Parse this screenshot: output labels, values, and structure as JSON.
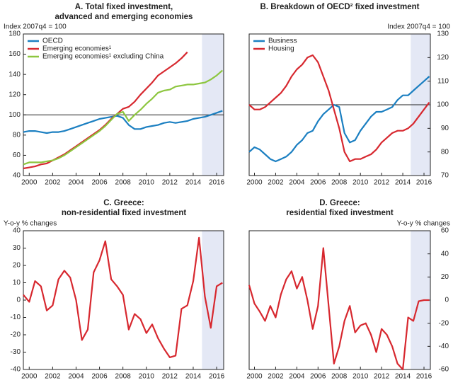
{
  "chart_data": [
    {
      "type": "line",
      "title": [
        "A. Total fixed investment,",
        "advanced and emerging economies"
      ],
      "y_label": "Index 2007q4 = 100",
      "y_axis_side": "left",
      "legend": "upper left",
      "x": [
        1999.5,
        2000,
        2000.5,
        2001,
        2001.5,
        2002,
        2002.5,
        2003,
        2003.5,
        2004,
        2004.5,
        2005,
        2005.5,
        2006,
        2006.5,
        2007,
        2007.5,
        2008,
        2008.5,
        2009,
        2009.5,
        2010,
        2010.5,
        2011,
        2011.5,
        2012,
        2012.5,
        2013,
        2013.5,
        2014,
        2014.5,
        2015,
        2015.5,
        2016,
        2016.5
      ],
      "xlim": [
        1999.5,
        2016.6
      ],
      "xticks": [
        2000,
        2002,
        2004,
        2006,
        2008,
        2010,
        2012,
        2014,
        2016
      ],
      "ylim": [
        40,
        180
      ],
      "yticks": [
        40,
        60,
        80,
        100,
        120,
        140,
        160,
        180
      ],
      "ref_line": 100,
      "shaded_x": [
        2014.75,
        2016.6
      ],
      "series": [
        {
          "name": "OECD",
          "color": "#1b7fc1",
          "values": [
            83,
            84,
            84,
            83,
            82,
            83,
            83,
            84,
            86,
            88,
            90,
            92,
            94,
            96,
            97,
            98,
            99,
            97,
            90,
            86,
            86,
            88,
            89,
            90,
            92,
            93,
            92,
            93,
            94,
            96,
            97,
            98,
            100,
            102,
            104
          ]
        },
        {
          "name": "Emerging economies¹",
          "color": "#d7282f",
          "values": [
            47,
            48,
            49,
            51,
            52,
            55,
            58,
            61,
            65,
            69,
            73,
            77,
            81,
            85,
            90,
            96,
            101,
            106,
            108,
            113,
            120,
            126,
            132,
            139,
            143,
            147,
            151,
            156,
            162,
            null,
            null,
            null,
            null,
            null,
            null
          ]
        },
        {
          "name": "Emerging economies¹ excluding China",
          "color": "#8dc63f",
          "values": [
            51,
            53,
            53,
            53,
            54,
            55,
            57,
            60,
            64,
            68,
            72,
            76,
            80,
            84,
            89,
            95,
            101,
            103,
            94,
            100,
            105,
            111,
            116,
            122,
            124,
            125,
            128,
            129,
            130,
            130,
            131,
            132,
            135,
            139,
            144
          ]
        }
      ]
    },
    {
      "type": "line",
      "title": [
        "B. Breakdown of OECD² fixed investment"
      ],
      "y_label": "Index 2007q4 = 100",
      "y_axis_side": "right",
      "legend": "upper left",
      "x": [
        1999.5,
        2000,
        2000.5,
        2001,
        2001.5,
        2002,
        2002.5,
        2003,
        2003.5,
        2004,
        2004.5,
        2005,
        2005.5,
        2006,
        2006.5,
        2007,
        2007.5,
        2008,
        2008.5,
        2009,
        2009.5,
        2010,
        2010.5,
        2011,
        2011.5,
        2012,
        2012.5,
        2013,
        2013.5,
        2014,
        2014.5,
        2015,
        2015.5,
        2016,
        2016.5
      ],
      "xlim": [
        1999.5,
        2016.6
      ],
      "xticks": [
        2000,
        2002,
        2004,
        2006,
        2008,
        2010,
        2012,
        2014,
        2016
      ],
      "ylim": [
        70,
        130
      ],
      "yticks": [
        70,
        80,
        90,
        100,
        110,
        120,
        130
      ],
      "ref_line": 100,
      "shaded_x": [
        2014.75,
        2016.6
      ],
      "series": [
        {
          "name": "Business",
          "color": "#1b7fc1",
          "values": [
            80,
            82,
            81,
            79,
            77,
            76,
            77,
            78,
            80,
            83,
            85,
            88,
            89,
            93,
            96,
            98,
            100,
            99,
            88,
            84,
            85,
            89,
            92,
            95,
            97,
            97,
            98,
            99,
            102,
            104,
            104,
            106,
            108,
            110,
            112
          ]
        },
        {
          "name": "Housing",
          "color": "#d7282f",
          "values": [
            100,
            98,
            98,
            99,
            101,
            103,
            105,
            108,
            112,
            115,
            117,
            120,
            121,
            118,
            112,
            106,
            98,
            90,
            80,
            76,
            77,
            77,
            78,
            79,
            81,
            84,
            86,
            88,
            89,
            89,
            90,
            92,
            95,
            98,
            101
          ]
        }
      ]
    },
    {
      "type": "line",
      "title": [
        "C. Greece:",
        "non-residential fixed investment"
      ],
      "y_label": "Y-o-y % changes",
      "y_axis_side": "left",
      "x": [
        1999.5,
        2000,
        2000.5,
        2001,
        2001.5,
        2002,
        2002.5,
        2003,
        2003.5,
        2004,
        2004.5,
        2005,
        2005.5,
        2006,
        2006.5,
        2007,
        2007.5,
        2008,
        2008.5,
        2009,
        2009.5,
        2010,
        2010.5,
        2011,
        2011.5,
        2012,
        2012.5,
        2013,
        2013.5,
        2014,
        2014.5,
        2015,
        2015.5,
        2016,
        2016.5
      ],
      "xlim": [
        1999.5,
        2016.6
      ],
      "xticks": [
        2000,
        2002,
        2004,
        2006,
        2008,
        2010,
        2012,
        2014,
        2016
      ],
      "ylim": [
        -40,
        40
      ],
      "yticks": [
        -40,
        -30,
        -20,
        -10,
        0,
        10,
        20,
        30,
        40
      ],
      "shaded_x": [
        2014.75,
        2016.6
      ],
      "series": [
        {
          "color": "#d7282f",
          "values": [
            3,
            -1,
            11,
            8,
            -6,
            -3,
            12,
            17,
            13,
            0,
            -23,
            -17,
            16,
            23,
            34,
            12,
            8,
            3,
            -17,
            -8,
            -11,
            -19,
            -14,
            -22,
            -28,
            -33,
            -32,
            -5,
            -3,
            11,
            36,
            2,
            -16,
            8,
            10
          ]
        }
      ]
    },
    {
      "type": "line",
      "title": [
        "D. Greece:",
        "residential fixed investment"
      ],
      "y_label": "Y-o-y % changes",
      "y_axis_side": "right",
      "x": [
        1999.5,
        2000,
        2000.5,
        2001,
        2001.5,
        2002,
        2002.5,
        2003,
        2003.5,
        2004,
        2004.5,
        2005,
        2005.5,
        2006,
        2006.5,
        2007,
        2007.5,
        2008,
        2008.5,
        2009,
        2009.5,
        2010,
        2010.5,
        2011,
        2011.5,
        2012,
        2012.5,
        2013,
        2013.5,
        2014,
        2014.5,
        2015,
        2015.5,
        2016,
        2016.5
      ],
      "xlim": [
        1999.5,
        2016.6
      ],
      "xticks": [
        2000,
        2002,
        2004,
        2006,
        2008,
        2010,
        2012,
        2014,
        2016
      ],
      "ylim": [
        -60,
        60
      ],
      "yticks": [
        -60,
        -40,
        -20,
        0,
        20,
        40,
        60
      ],
      "shaded_x": [
        2014.75,
        2016.6
      ],
      "series": [
        {
          "color": "#d7282f",
          "values": [
            13,
            -3,
            -10,
            -18,
            -5,
            -15,
            5,
            18,
            25,
            10,
            20,
            0,
            -25,
            -5,
            45,
            -5,
            -55,
            -40,
            -18,
            -5,
            -28,
            -22,
            -20,
            -30,
            -45,
            -25,
            -30,
            -40,
            -55,
            -60,
            -15,
            -18,
            -1,
            0,
            0
          ]
        }
      ]
    }
  ]
}
